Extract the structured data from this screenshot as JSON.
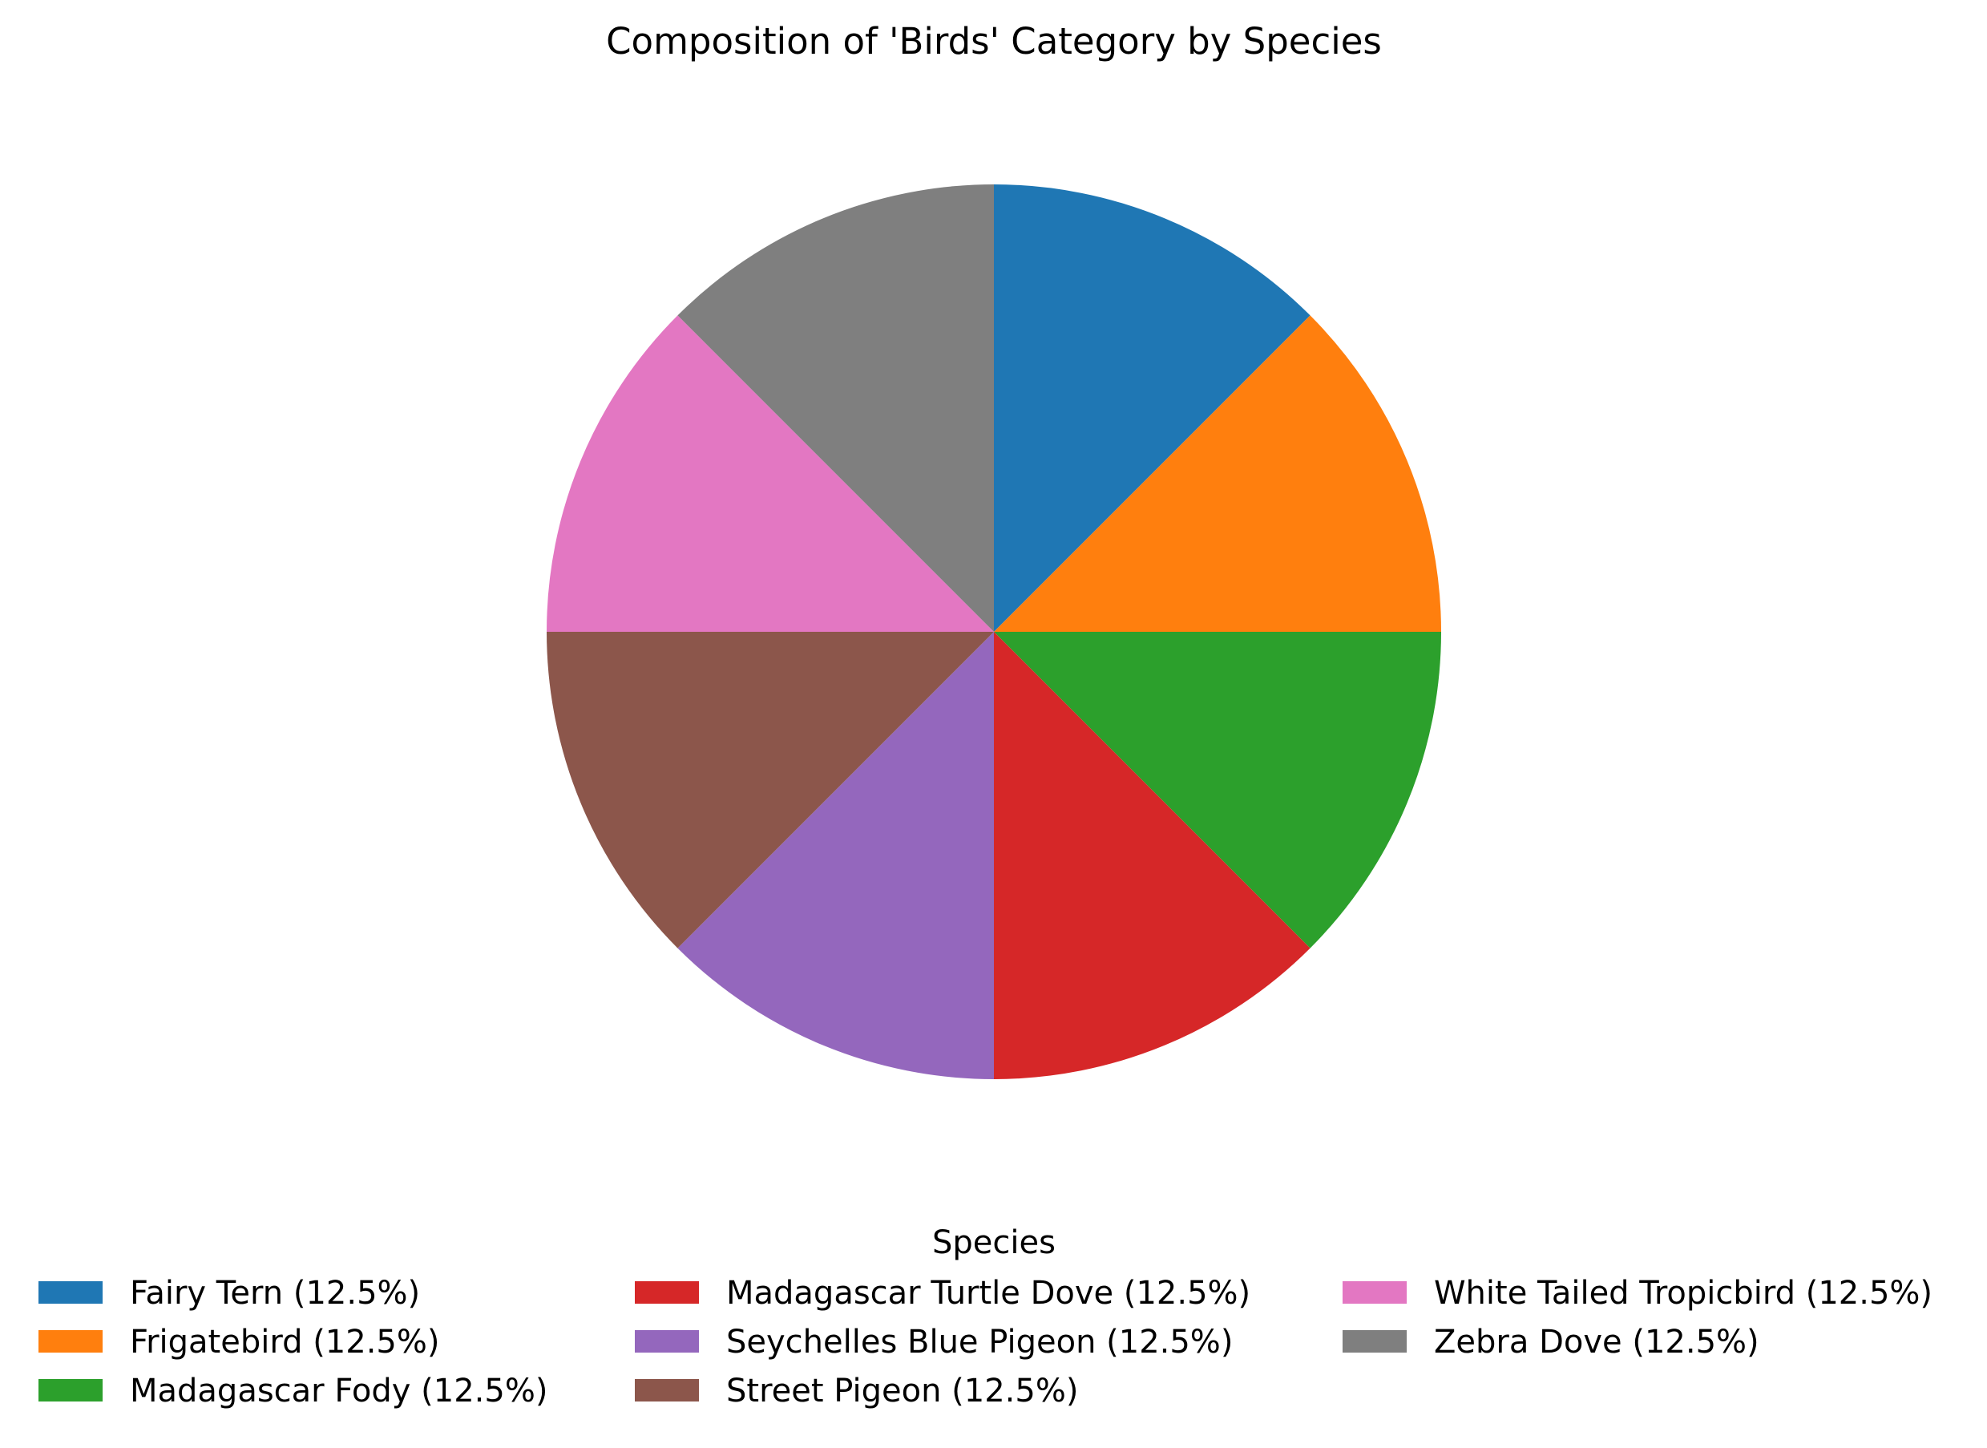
{
  "chart_data": {
    "type": "pie",
    "title": "Composition of 'Birds' Category by Species",
    "legend_title": "Species",
    "legend_placement": "bottom",
    "start_angle_deg": 90,
    "direction": "clockwise",
    "slices": [
      {
        "label": "Fairy Tern",
        "value": 12.5,
        "legend_label": "Fairy Tern (12.5%)",
        "color": "#1f77b4"
      },
      {
        "label": "Frigatebird",
        "value": 12.5,
        "legend_label": "Frigatebird (12.5%)",
        "color": "#ff7f0e"
      },
      {
        "label": "Madagascar Fody",
        "value": 12.5,
        "legend_label": "Madagascar Fody (12.5%)",
        "color": "#2ca02c"
      },
      {
        "label": "Madagascar Turtle Dove",
        "value": 12.5,
        "legend_label": "Madagascar Turtle Dove (12.5%)",
        "color": "#d62728"
      },
      {
        "label": "Seychelles Blue Pigeon",
        "value": 12.5,
        "legend_label": "Seychelles Blue Pigeon (12.5%)",
        "color": "#9467bd"
      },
      {
        "label": "Street Pigeon",
        "value": 12.5,
        "legend_label": "Street Pigeon (12.5%)",
        "color": "#8c564b"
      },
      {
        "label": "White Tailed Tropicbird",
        "value": 12.5,
        "legend_label": "White Tailed Tropicbird (12.5%)",
        "color": "#e377c2"
      },
      {
        "label": "Zebra Dove",
        "value": 12.5,
        "legend_label": "Zebra Dove (12.5%)",
        "color": "#7f7f7f"
      }
    ]
  }
}
